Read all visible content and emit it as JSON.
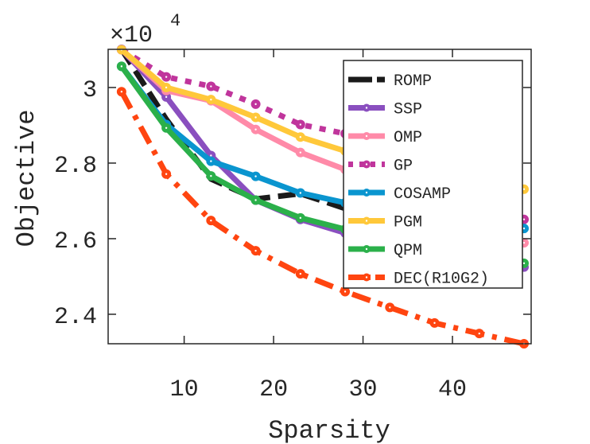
{
  "chart_data": {
    "type": "line",
    "title": "",
    "xlabel": "Sparsity",
    "ylabel": "Objective",
    "y_exponent_label": "×10",
    "y_exponent_power": "4",
    "xlim": [
      1.5,
      48.8
    ],
    "ylim": [
      2.322,
      3.101
    ],
    "xticks": [
      10,
      20,
      30,
      40
    ],
    "yticks": [
      2.4,
      2.6,
      2.8,
      3.0
    ],
    "xtick_labels": [
      "10",
      "20",
      "30",
      "40"
    ],
    "ytick_labels": [
      "2.4",
      "2.6",
      "2.8",
      "3"
    ],
    "grid": false,
    "legend_position": "top-right",
    "x": [
      3,
      8,
      13,
      18,
      23,
      28,
      33,
      38,
      43,
      48
    ],
    "series": [
      {
        "name": "ROMP",
        "color": "#1a1a1a",
        "style": "dashed",
        "markers": false,
        "values": [
          3.101,
          2.916,
          2.758,
          2.705,
          2.719,
          2.68,
          2.66,
          2.64,
          2.62,
          2.6
        ]
      },
      {
        "name": "SSP",
        "color": "#8a4fbf",
        "style": "solid",
        "markers": true,
        "values": [
          3.101,
          2.975,
          2.82,
          2.702,
          2.651,
          2.615,
          2.58,
          2.56,
          2.54,
          2.525
        ]
      },
      {
        "name": "OMP",
        "color": "#ff8aa8",
        "style": "solid",
        "markers": true,
        "values": [
          3.1,
          2.992,
          2.965,
          2.889,
          2.828,
          2.783,
          2.72,
          2.67,
          2.625,
          2.589
        ]
      },
      {
        "name": "GP",
        "color": "#c0359c",
        "style": "dotted",
        "markers": true,
        "values": [
          3.1,
          3.028,
          3.003,
          2.956,
          2.902,
          2.878,
          2.82,
          2.76,
          2.7,
          2.651
        ]
      },
      {
        "name": "COSAMP",
        "color": "#0a95cf",
        "style": "solid",
        "markers": true,
        "values": [
          3.056,
          2.902,
          2.805,
          2.765,
          2.721,
          2.695,
          2.675,
          2.658,
          2.642,
          2.627
        ]
      },
      {
        "name": "PGM",
        "color": "#ffc83a",
        "style": "solid",
        "markers": true,
        "values": [
          3.1,
          3.0,
          2.968,
          2.921,
          2.869,
          2.832,
          2.8,
          2.775,
          2.752,
          2.731
        ]
      },
      {
        "name": "QPM",
        "color": "#2bb04a",
        "style": "solid",
        "markers": true,
        "values": [
          3.056,
          2.893,
          2.766,
          2.702,
          2.655,
          2.625,
          2.59,
          2.565,
          2.548,
          2.535
        ]
      },
      {
        "name": "DEC(R10G2)",
        "color": "#ff4510",
        "style": "dashdot",
        "markers": true,
        "values": [
          2.989,
          2.771,
          2.648,
          2.568,
          2.507,
          2.46,
          2.418,
          2.377,
          2.349,
          2.322
        ]
      }
    ]
  }
}
